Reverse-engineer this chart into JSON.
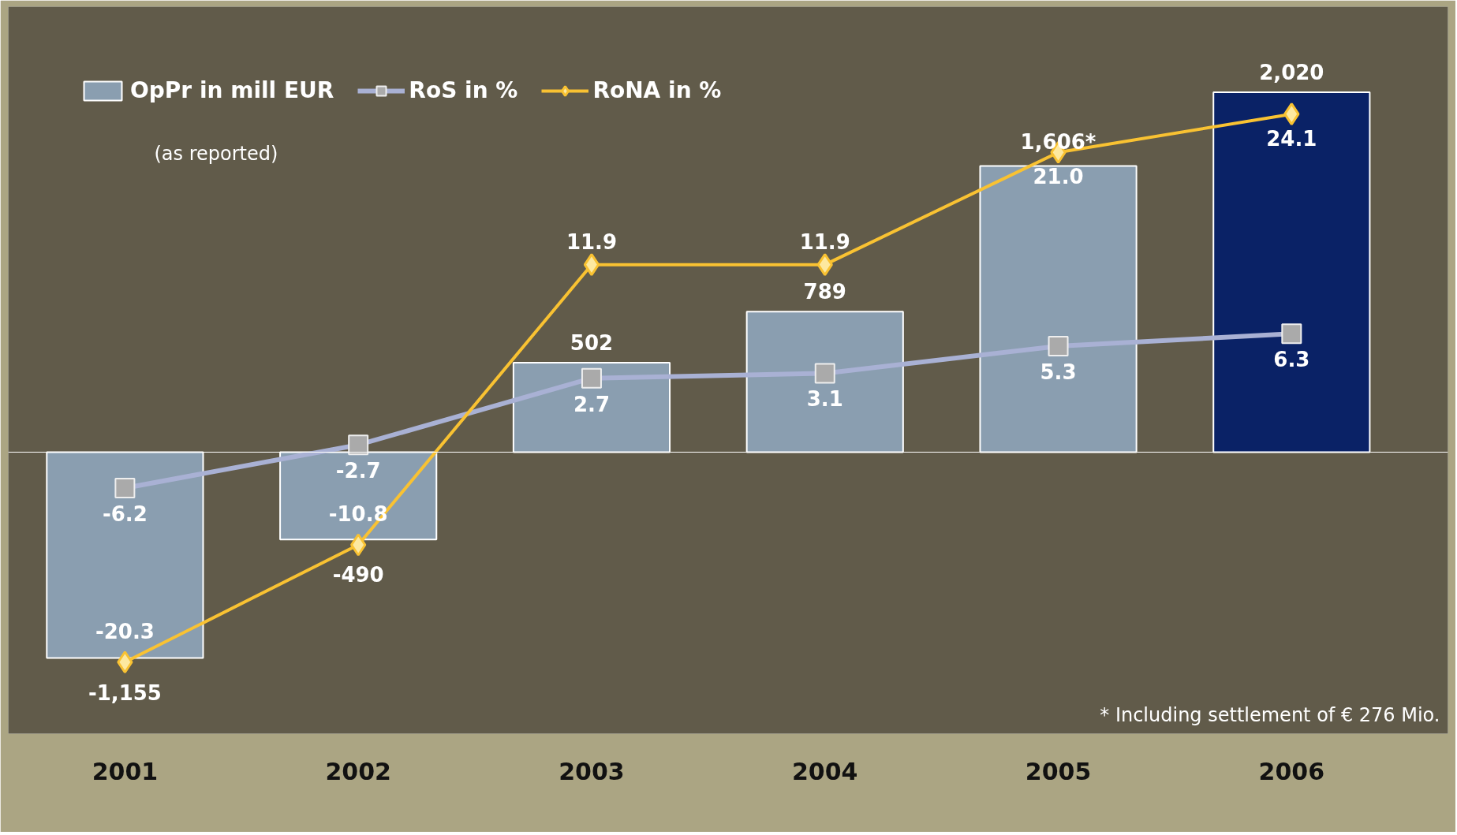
{
  "chart_data": {
    "type": "bar",
    "categories": [
      "2001",
      "2002",
      "2003",
      "2004",
      "2005",
      "2006"
    ],
    "ylim": [
      -1580,
      2500
    ],
    "y2lim": [
      -26.1,
      32.8
    ],
    "tick_labels": "x",
    "legend": "top left",
    "data_labels": true,
    "series": [
      {
        "name": "OpPr in mill EUR",
        "color": "#8a9eb0",
        "colors": [
          "#8a9eb0",
          "#8a9eb0",
          "#8a9eb0",
          "#8a9eb0",
          "#8a9eb0",
          "#0a2266"
        ],
        "values": [
          -1155,
          -490,
          502,
          789,
          1606,
          2020
        ],
        "value_labels": [
          "-1,155",
          "-490",
          "502",
          "789",
          "1,606*",
          "2,020"
        ]
      },
      {
        "name": "RoS in %",
        "type": "line",
        "axis": "y2",
        "color": "#a9b1d4",
        "marker": "square",
        "values": [
          -6.2,
          -2.7,
          2.7,
          3.1,
          5.3,
          6.3
        ],
        "value_labels": [
          "-6.2",
          "-2.7",
          "2.7",
          "3.1",
          "5.3",
          "6.3"
        ]
      },
      {
        "name": "RoNA in %",
        "type": "line",
        "axis": "y2",
        "color": "#f9c232",
        "marker": "diamond",
        "values": [
          -20.3,
          -10.8,
          11.9,
          11.9,
          21.0,
          24.1
        ],
        "value_labels": [
          "-20.3",
          "-10.8",
          "11.9",
          "11.9",
          "21.0",
          "24.1"
        ]
      }
    ],
    "annotations": [
      "(as reported)",
      "* Including settlement of € 276 Mio."
    ]
  }
}
